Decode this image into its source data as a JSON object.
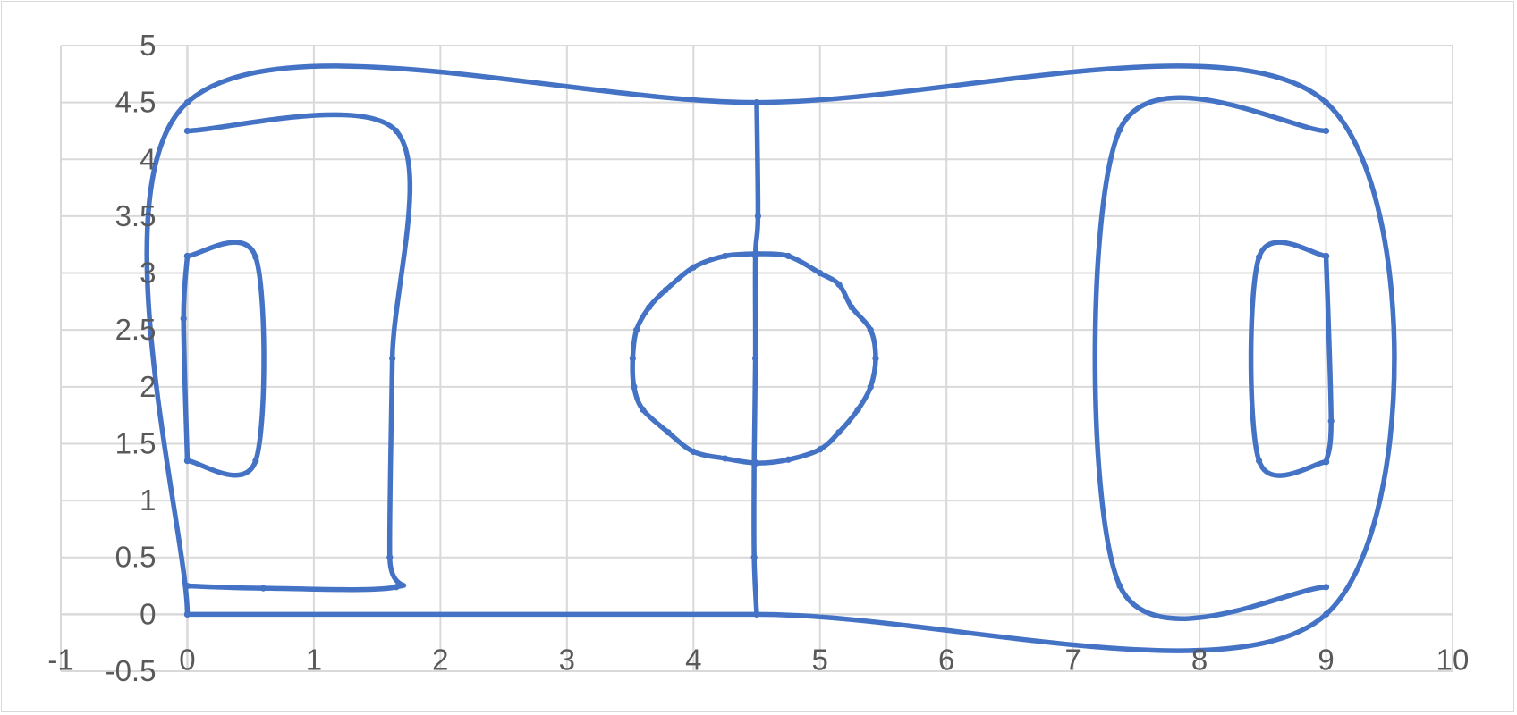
{
  "chart_data": {
    "type": "scatter",
    "title": "",
    "xlabel": "",
    "ylabel": "",
    "xlim": [
      -1,
      10
    ],
    "ylim": [
      -0.5,
      5
    ],
    "x_ticks": [
      "-1",
      "0",
      "1",
      "2",
      "3",
      "4",
      "5",
      "6",
      "7",
      "8",
      "9",
      "10"
    ],
    "y_ticks": [
      "-0.5",
      "0",
      "0.5",
      "1",
      "1.5",
      "2",
      "2.5",
      "3",
      "3.5",
      "4",
      "4.5",
      "5"
    ],
    "grid": true,
    "legend": "none",
    "series": [
      {
        "color": "#4472c4",
        "mode": "smooth-lines-with-markers",
        "points": [
          [
            0,
            0
          ],
          [
            4.5,
            0
          ],
          [
            9,
            0
          ],
          [
            9,
            4.5
          ],
          [
            4.5,
            4.5
          ],
          [
            0,
            4.5
          ],
          [
            0,
            0
          ]
        ]
      },
      {
        "color": "#4472c4",
        "mode": "smooth-lines-with-markers",
        "points": [
          [
            0,
            4.25
          ],
          [
            1.65,
            4.25
          ],
          [
            1.62,
            2.25
          ],
          [
            1.6,
            0.5
          ],
          [
            1.65,
            0.24
          ],
          [
            0.6,
            0.23
          ],
          [
            0,
            0.25
          ]
        ]
      },
      {
        "color": "#4472c4",
        "mode": "smooth-lines-with-markers",
        "points": [
          [
            0,
            3.15
          ],
          [
            0.54,
            3.14
          ],
          [
            0.54,
            1.35
          ],
          [
            0,
            1.35
          ]
        ]
      },
      {
        "color": "#4472c4",
        "mode": "smooth-lines-with-markers",
        "points": [
          [
            9,
            4.25
          ],
          [
            7.37,
            4.26
          ],
          [
            7.37,
            0.25
          ],
          [
            9,
            0.24
          ]
        ]
      },
      {
        "color": "#4472c4",
        "mode": "smooth-lines-with-markers",
        "points": [
          [
            9,
            3.15
          ],
          [
            8.47,
            3.14
          ],
          [
            8.47,
            1.35
          ],
          [
            9,
            1.34
          ]
        ]
      },
      {
        "color": "#4472c4",
        "mode": "smooth-lines-with-markers",
        "points": [
          [
            4.5,
            4.5
          ],
          [
            4.51,
            3.5
          ],
          [
            4.49,
            3.15
          ],
          [
            4.49,
            2.25
          ],
          [
            4.48,
            1.33
          ],
          [
            4.48,
            0.5
          ],
          [
            4.5,
            0
          ]
        ]
      },
      {
        "color": "#4472c4",
        "mode": "smooth-lines-with-markers",
        "points": [
          [
            4.5,
            3.17
          ],
          [
            4.75,
            3.15
          ],
          [
            5.0,
            3.0
          ],
          [
            5.15,
            2.9
          ],
          [
            5.25,
            2.7
          ],
          [
            5.4,
            2.5
          ],
          [
            5.44,
            2.25
          ],
          [
            5.4,
            2.0
          ],
          [
            5.3,
            1.8
          ],
          [
            5.15,
            1.6
          ],
          [
            5.0,
            1.45
          ],
          [
            4.75,
            1.36
          ],
          [
            4.5,
            1.33
          ],
          [
            4.25,
            1.37
          ],
          [
            4.0,
            1.43
          ],
          [
            3.8,
            1.6
          ],
          [
            3.6,
            1.8
          ],
          [
            3.53,
            2.0
          ],
          [
            3.52,
            2.25
          ],
          [
            3.55,
            2.5
          ],
          [
            3.65,
            2.7
          ],
          [
            3.78,
            2.85
          ],
          [
            4.0,
            3.05
          ],
          [
            4.25,
            3.15
          ],
          [
            4.5,
            3.17
          ]
        ]
      },
      {
        "color": "#4472c4",
        "mode": "smooth-lines-with-markers",
        "points": [
          [
            0,
            3.15
          ],
          [
            -0.03,
            2.6
          ],
          [
            0,
            1.35
          ]
        ]
      },
      {
        "color": "#4472c4",
        "mode": "smooth-lines-with-markers",
        "points": [
          [
            9,
            3.15
          ],
          [
            9.04,
            1.7
          ],
          [
            9,
            1.34
          ]
        ]
      }
    ]
  }
}
